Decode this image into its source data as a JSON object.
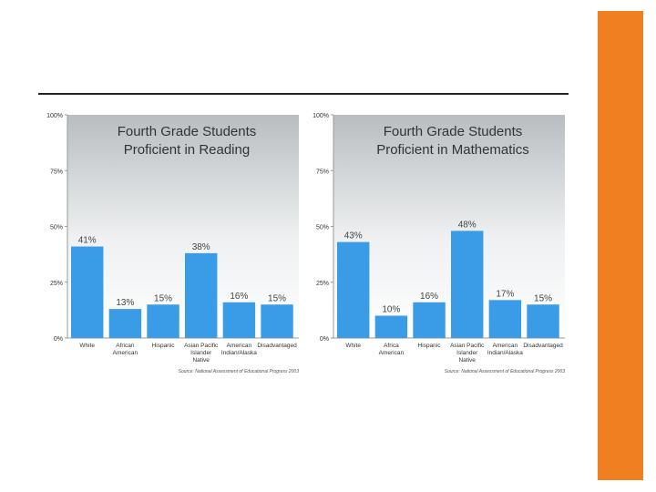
{
  "colors": {
    "accent_orange": "#f07f22",
    "bar": "#3a9be6",
    "rule": "#222222"
  },
  "chart_data": [
    {
      "type": "bar",
      "title_lines": [
        "Fourth Grade Students",
        "Proficient in Reading"
      ],
      "xlabel": "",
      "ylabel": "",
      "ylim": [
        0,
        100
      ],
      "yticks": [
        "0%",
        "25%",
        "50%",
        "75%",
        "100%"
      ],
      "categories": [
        [
          "White"
        ],
        [
          "African",
          "American"
        ],
        [
          "Hispanic"
        ],
        [
          "Asian Pacific",
          "Islander",
          "Native"
        ],
        [
          "American",
          "Indian/Alaska"
        ],
        [
          "Disadvantaged"
        ]
      ],
      "values": [
        41,
        13,
        15,
        38,
        16,
        15
      ],
      "data_labels": [
        "41%",
        "13%",
        "15%",
        "38%",
        "16%",
        "15%"
      ],
      "source": "Source: National Assessment of Educational Progress 2003",
      "grid": false
    },
    {
      "type": "bar",
      "title_lines": [
        "Fourth Grade Students",
        "Proficient in Mathematics"
      ],
      "xlabel": "",
      "ylabel": "",
      "ylim": [
        0,
        100
      ],
      "yticks": [
        "0%",
        "25%",
        "50%",
        "75%",
        "100%"
      ],
      "categories": [
        [
          "White"
        ],
        [
          "Africa",
          "American"
        ],
        [
          "Hispanic"
        ],
        [
          "Asian Pacific",
          "Islander",
          "Native"
        ],
        [
          "American",
          "Indian/Alaska"
        ],
        [
          "Disadvantaged"
        ]
      ],
      "values": [
        43,
        10,
        16,
        48,
        17,
        15
      ],
      "data_labels": [
        "43%",
        "10%",
        "16%",
        "48%",
        "17%",
        "15%"
      ],
      "source": "Source: National Assessment of Educational Progress 2003",
      "grid": false
    }
  ]
}
